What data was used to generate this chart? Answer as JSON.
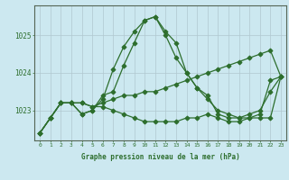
{
  "xlabel": "Graphe pression niveau de la mer (hPa)",
  "x": [
    0,
    1,
    2,
    3,
    4,
    5,
    6,
    7,
    8,
    9,
    10,
    11,
    12,
    13,
    14,
    15,
    16,
    17,
    18,
    19,
    20,
    21,
    22,
    23
  ],
  "series": [
    [
      1022.4,
      1022.8,
      1023.2,
      1023.2,
      1022.9,
      1023.0,
      1023.3,
      1024.1,
      1024.7,
      1025.1,
      1025.4,
      1025.5,
      1025.0,
      1024.4,
      1024.0,
      1023.6,
      1023.3,
      1023.0,
      1022.9,
      1022.8,
      1022.8,
      1022.9,
      1023.8,
      1023.9
    ],
    [
      1022.4,
      1022.8,
      1023.2,
      1023.2,
      1023.2,
      1023.1,
      1023.2,
      1023.3,
      1023.4,
      1023.4,
      1023.5,
      1023.5,
      1023.6,
      1023.7,
      1023.8,
      1023.9,
      1024.0,
      1024.1,
      1024.2,
      1024.3,
      1024.4,
      1024.5,
      1024.6,
      1023.9
    ],
    [
      1022.4,
      1022.8,
      1023.2,
      1023.2,
      1023.2,
      1023.1,
      1023.1,
      1023.0,
      1022.9,
      1022.8,
      1022.7,
      1022.7,
      1022.7,
      1022.7,
      1022.8,
      1022.8,
      1022.9,
      1022.8,
      1022.7,
      1022.7,
      1022.8,
      1022.8,
      1022.8,
      1023.9
    ],
    [
      1022.4,
      1022.8,
      1023.2,
      1023.2,
      1022.9,
      1023.0,
      1023.4,
      1023.5,
      1024.2,
      1024.8,
      1025.4,
      1025.5,
      1025.1,
      1024.8,
      1024.0,
      1023.6,
      1023.4,
      1022.9,
      1022.8,
      1022.8,
      1022.9,
      1023.0,
      1023.5,
      1023.9
    ]
  ],
  "line_color": "#2d6e2d",
  "marker": "D",
  "markersize": 2.5,
  "linewidth": 0.9,
  "bg_color": "#cce8f0",
  "grid_color": "#b0c8d0",
  "y_ticks": [
    1023,
    1024,
    1025
  ],
  "ylim": [
    1022.2,
    1025.8
  ],
  "xlim": [
    -0.5,
    23.5
  ]
}
